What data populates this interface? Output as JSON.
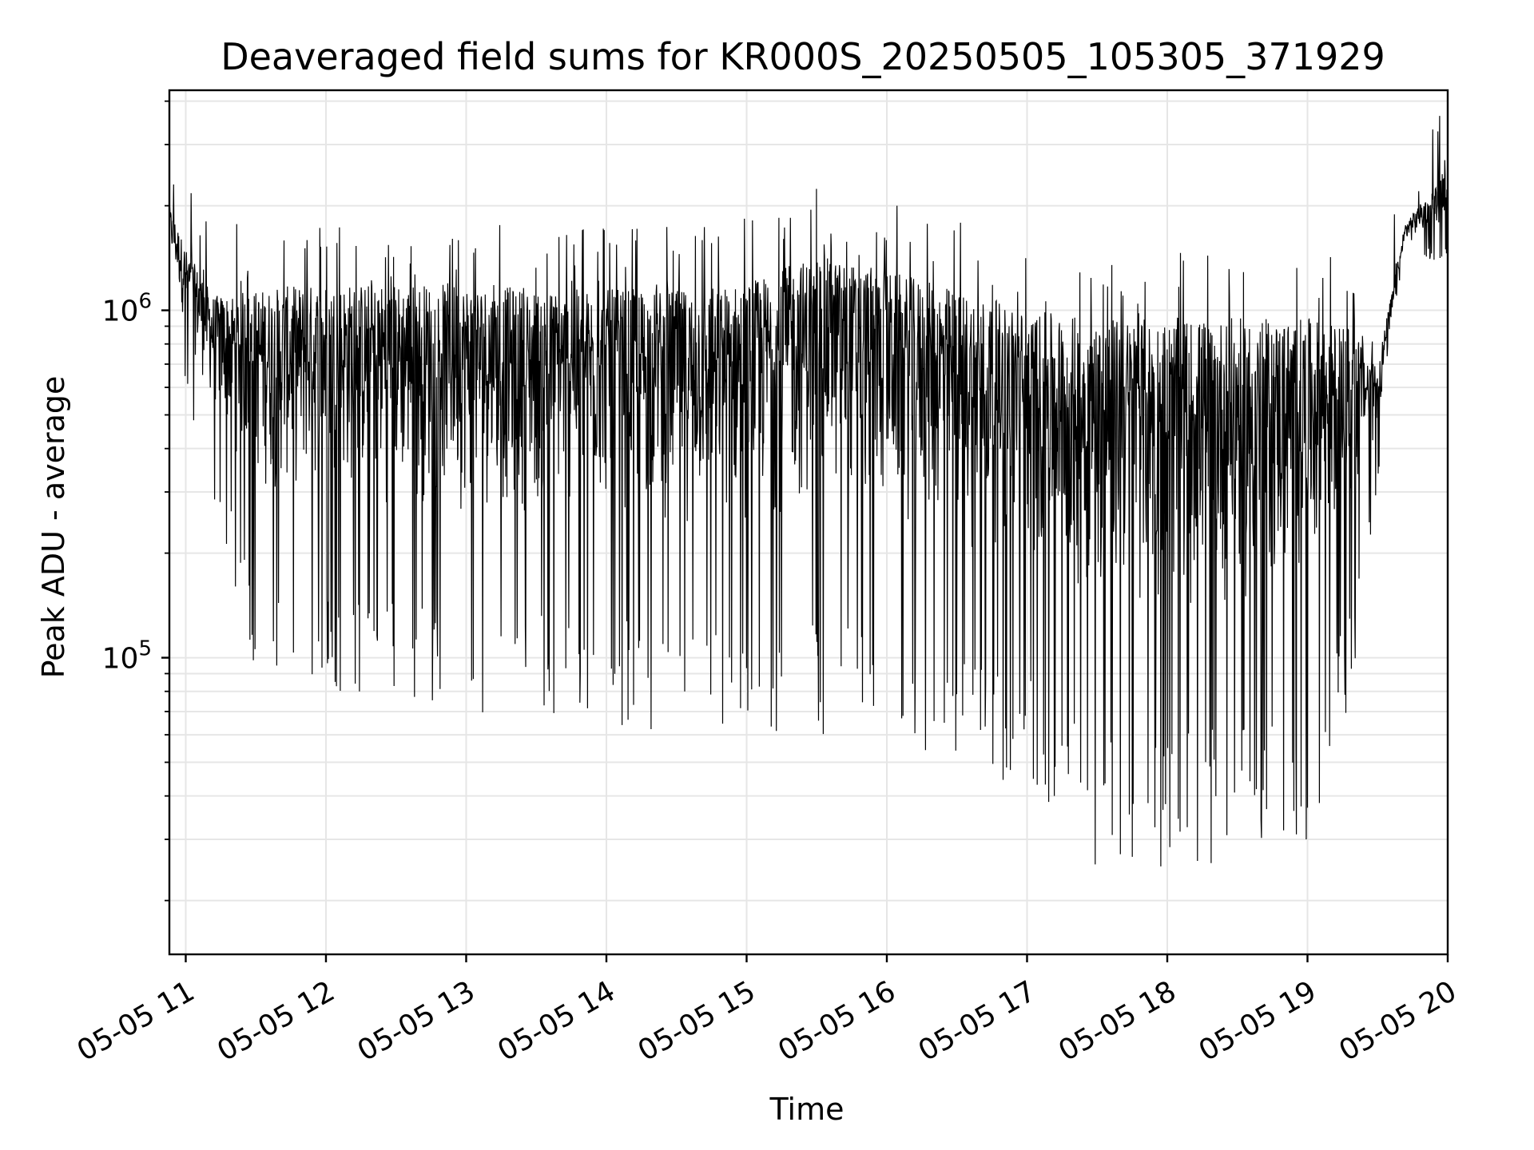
{
  "chart_data": {
    "type": "line",
    "title": "Deaveraged field sums for KR000S_20250505_105305_371929",
    "xlabel": "Time",
    "ylabel": "Peak ADU - average",
    "x_ticks": [
      "05-05 11",
      "05-05 12",
      "05-05 13",
      "05-05 14",
      "05-05 15",
      "05-05 16",
      "05-05 17",
      "05-05 18",
      "05-05 19",
      "05-05 20"
    ],
    "y_scale": "log",
    "y_ticks": [
      {
        "base": "10",
        "exp": "5",
        "value": 100000
      },
      {
        "base": "10",
        "exp": "6",
        "value": 1000000
      }
    ],
    "xlim": [
      "2025-05-05 10:53",
      "2025-05-05 20:00"
    ],
    "ylim": [
      14000,
      4300000
    ],
    "grid": true,
    "line_color": "#000000",
    "grid_color": "#e6e6e6",
    "series": [
      {
        "x_start": "2025-05-05 10:53",
        "x_end": "2025-05-05 20:00",
        "description_note": "",
        "envelope_hours": [
          10.883,
          11.0,
          11.2,
          11.5,
          12.0,
          12.5,
          13.0,
          13.5,
          14.0,
          14.5,
          15.0,
          15.5,
          16.0,
          16.5,
          17.0,
          17.5,
          18.0,
          18.5,
          19.0,
          19.3,
          19.5,
          19.7,
          20.0
        ],
        "upper_envelope": [
          2000000,
          1500000,
          1100000,
          1150000,
          1200000,
          1200000,
          1200000,
          1150000,
          1150000,
          1150000,
          1200000,
          1450000,
          1300000,
          1150000,
          1000000,
          950000,
          950000,
          950000,
          950000,
          900000,
          700000,
          1800000,
          2500000
        ],
        "lower_envelope": [
          1100000,
          550000,
          250000,
          90000,
          80000,
          75000,
          70000,
          65000,
          65000,
          60000,
          58000,
          60000,
          55000,
          50000,
          40000,
          25000,
          25000,
          25000,
          30000,
          70000,
          300000,
          1300000,
          1400000
        ]
      }
    ]
  }
}
